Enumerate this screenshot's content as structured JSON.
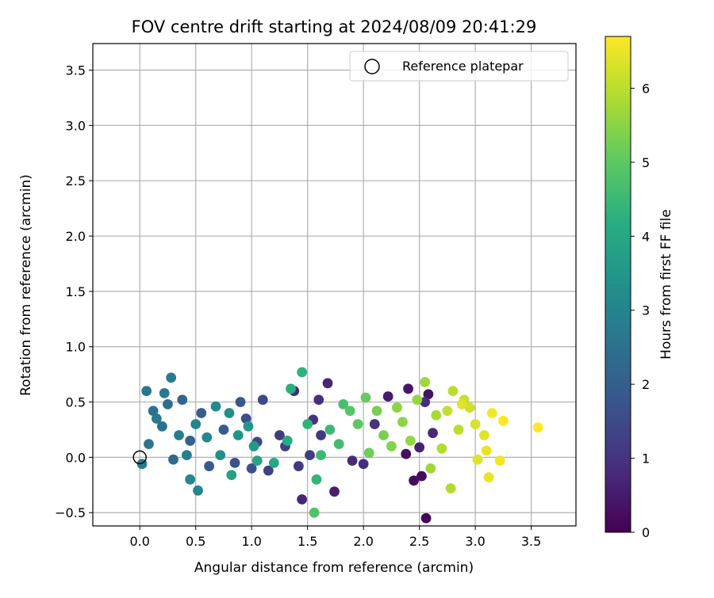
{
  "chart_data": {
    "type": "scatter",
    "title": "FOV centre drift starting at 2024/08/09 20:41:29",
    "xlabel": "Angular distance from reference (arcmin)",
    "ylabel": "Rotation from reference (arcmin)",
    "xlim": [
      -0.42,
      3.9
    ],
    "ylim": [
      -0.62,
      3.74
    ],
    "xticks": [
      0.0,
      0.5,
      1.0,
      1.5,
      2.0,
      2.5,
      3.0,
      3.5
    ],
    "xtick_labels": [
      "0.0",
      "0.5",
      "1.0",
      "1.5",
      "2.0",
      "2.5",
      "3.0",
      "3.5"
    ],
    "yticks": [
      -0.5,
      0.0,
      0.5,
      1.0,
      1.5,
      2.0,
      2.5,
      3.0,
      3.5
    ],
    "ytick_labels": [
      "−0.5",
      "0.0",
      "0.5",
      "1.0",
      "1.5",
      "2.0",
      "2.5",
      "3.0",
      "3.5"
    ],
    "grid": true,
    "legend": {
      "position": "top-right",
      "label": "Reference platepar",
      "marker": "open-circle"
    },
    "colorbar": {
      "label": "Hours from first FF file",
      "range": [
        0,
        6.7
      ],
      "ticks": [
        0,
        1,
        2,
        3,
        4,
        5,
        6
      ],
      "tick_labels": [
        "0",
        "1",
        "2",
        "3",
        "4",
        "5",
        "6"
      ],
      "colormap": "viridis"
    },
    "reference_point": {
      "x": 0.0,
      "y": 0.0
    },
    "points": [
      {
        "x": 2.56,
        "y": -0.55,
        "h": 0.1
      },
      {
        "x": 2.45,
        "y": -0.21,
        "h": 0.2
      },
      {
        "x": 2.52,
        "y": -0.17,
        "h": 0.25
      },
      {
        "x": 2.38,
        "y": 0.03,
        "h": 0.3
      },
      {
        "x": 2.58,
        "y": 0.57,
        "h": 0.35
      },
      {
        "x": 2.4,
        "y": 0.62,
        "h": 0.4
      },
      {
        "x": 2.22,
        "y": 0.55,
        "h": 0.5
      },
      {
        "x": 2.5,
        "y": 0.09,
        "h": 0.6
      },
      {
        "x": 2.62,
        "y": 0.22,
        "h": 0.8
      },
      {
        "x": 2.55,
        "y": 0.5,
        "h": 0.9
      },
      {
        "x": 2.1,
        "y": 0.3,
        "h": 1.0
      },
      {
        "x": 2.0,
        "y": -0.06,
        "h": 0.9
      },
      {
        "x": 1.9,
        "y": -0.03,
        "h": 0.8
      },
      {
        "x": 1.74,
        "y": -0.31,
        "h": 0.6
      },
      {
        "x": 1.45,
        "y": -0.38,
        "h": 0.7
      },
      {
        "x": 1.68,
        "y": 0.67,
        "h": 0.7
      },
      {
        "x": 1.38,
        "y": 0.6,
        "h": 0.8
      },
      {
        "x": 1.6,
        "y": 0.52,
        "h": 0.9
      },
      {
        "x": 1.55,
        "y": 0.34,
        "h": 1.0
      },
      {
        "x": 1.62,
        "y": 0.2,
        "h": 1.1
      },
      {
        "x": 1.42,
        "y": -0.08,
        "h": 1.1
      },
      {
        "x": 1.52,
        "y": 0.02,
        "h": 1.2
      },
      {
        "x": 1.25,
        "y": 0.2,
        "h": 1.2
      },
      {
        "x": 1.3,
        "y": 0.1,
        "h": 1.3
      },
      {
        "x": 1.15,
        "y": -0.12,
        "h": 1.3
      },
      {
        "x": 1.05,
        "y": 0.14,
        "h": 1.4
      },
      {
        "x": 1.1,
        "y": 0.52,
        "h": 1.5
      },
      {
        "x": 0.95,
        "y": 0.35,
        "h": 1.6
      },
      {
        "x": 1.0,
        "y": -0.1,
        "h": 1.6
      },
      {
        "x": 0.85,
        "y": -0.05,
        "h": 1.7
      },
      {
        "x": 0.9,
        "y": 0.5,
        "h": 1.8
      },
      {
        "x": 0.75,
        "y": 0.25,
        "h": 1.9
      },
      {
        "x": 0.62,
        "y": -0.08,
        "h": 1.9
      },
      {
        "x": 0.55,
        "y": 0.4,
        "h": 2.0
      },
      {
        "x": 0.45,
        "y": 0.15,
        "h": 2.1
      },
      {
        "x": 0.38,
        "y": 0.52,
        "h": 2.2
      },
      {
        "x": 0.3,
        "y": -0.02,
        "h": 2.3
      },
      {
        "x": 0.25,
        "y": 0.48,
        "h": 2.4
      },
      {
        "x": 0.2,
        "y": 0.28,
        "h": 2.5
      },
      {
        "x": 0.12,
        "y": 0.42,
        "h": 2.5
      },
      {
        "x": 0.08,
        "y": 0.12,
        "h": 2.6
      },
      {
        "x": 0.06,
        "y": 0.6,
        "h": 2.6
      },
      {
        "x": 0.02,
        "y": -0.06,
        "h": 2.7
      },
      {
        "x": 0.15,
        "y": 0.35,
        "h": 2.7
      },
      {
        "x": 0.22,
        "y": 0.58,
        "h": 2.7
      },
      {
        "x": 0.28,
        "y": 0.72,
        "h": 2.8
      },
      {
        "x": 0.35,
        "y": 0.2,
        "h": 2.8
      },
      {
        "x": 0.42,
        "y": 0.02,
        "h": 2.9
      },
      {
        "x": 0.5,
        "y": 0.3,
        "h": 3.0
      },
      {
        "x": 0.52,
        "y": -0.3,
        "h": 3.0
      },
      {
        "x": 0.45,
        "y": -0.2,
        "h": 3.1
      },
      {
        "x": 0.6,
        "y": 0.18,
        "h": 3.1
      },
      {
        "x": 0.68,
        "y": 0.46,
        "h": 3.2
      },
      {
        "x": 0.72,
        "y": 0.02,
        "h": 3.3
      },
      {
        "x": 0.8,
        "y": 0.4,
        "h": 3.3
      },
      {
        "x": 0.88,
        "y": 0.2,
        "h": 3.4
      },
      {
        "x": 0.97,
        "y": 0.28,
        "h": 3.5
      },
      {
        "x": 1.02,
        "y": 0.1,
        "h": 3.6
      },
      {
        "x": 0.82,
        "y": -0.16,
        "h": 3.8
      },
      {
        "x": 1.05,
        "y": -0.03,
        "h": 3.9
      },
      {
        "x": 1.2,
        "y": -0.05,
        "h": 4.0
      },
      {
        "x": 1.32,
        "y": 0.15,
        "h": 4.1
      },
      {
        "x": 1.35,
        "y": 0.62,
        "h": 4.2
      },
      {
        "x": 1.45,
        "y": 0.77,
        "h": 4.3
      },
      {
        "x": 1.5,
        "y": 0.3,
        "h": 4.3
      },
      {
        "x": 1.58,
        "y": -0.2,
        "h": 4.4
      },
      {
        "x": 1.62,
        "y": 0.02,
        "h": 4.5
      },
      {
        "x": 1.7,
        "y": 0.25,
        "h": 4.5
      },
      {
        "x": 1.78,
        "y": 0.12,
        "h": 4.6
      },
      {
        "x": 1.82,
        "y": 0.48,
        "h": 4.7
      },
      {
        "x": 1.56,
        "y": -0.5,
        "h": 4.8
      },
      {
        "x": 1.88,
        "y": 0.42,
        "h": 4.9
      },
      {
        "x": 1.95,
        "y": 0.3,
        "h": 5.0
      },
      {
        "x": 2.02,
        "y": 0.54,
        "h": 5.1
      },
      {
        "x": 2.05,
        "y": 0.04,
        "h": 5.2
      },
      {
        "x": 2.12,
        "y": 0.42,
        "h": 5.3
      },
      {
        "x": 2.18,
        "y": 0.2,
        "h": 5.3
      },
      {
        "x": 2.25,
        "y": 0.1,
        "h": 5.4
      },
      {
        "x": 2.3,
        "y": 0.45,
        "h": 5.5
      },
      {
        "x": 2.35,
        "y": 0.32,
        "h": 5.5
      },
      {
        "x": 2.42,
        "y": 0.15,
        "h": 5.6
      },
      {
        "x": 2.48,
        "y": 0.52,
        "h": 5.6
      },
      {
        "x": 2.55,
        "y": 0.68,
        "h": 5.7
      },
      {
        "x": 2.6,
        "y": -0.1,
        "h": 5.7
      },
      {
        "x": 2.65,
        "y": 0.38,
        "h": 5.8
      },
      {
        "x": 2.7,
        "y": 0.08,
        "h": 5.9
      },
      {
        "x": 2.78,
        "y": -0.28,
        "h": 5.9
      },
      {
        "x": 2.8,
        "y": 0.6,
        "h": 6.0
      },
      {
        "x": 2.85,
        "y": 0.25,
        "h": 6.0
      },
      {
        "x": 2.9,
        "y": 0.52,
        "h": 6.1
      },
      {
        "x": 2.95,
        "y": 0.45,
        "h": 6.2
      },
      {
        "x": 3.0,
        "y": 0.3,
        "h": 6.3
      },
      {
        "x": 3.02,
        "y": -0.02,
        "h": 6.4
      },
      {
        "x": 3.08,
        "y": 0.2,
        "h": 6.4
      },
      {
        "x": 3.1,
        "y": 0.06,
        "h": 6.5
      },
      {
        "x": 3.12,
        "y": -0.18,
        "h": 6.5
      },
      {
        "x": 3.15,
        "y": 0.4,
        "h": 6.6
      },
      {
        "x": 3.22,
        "y": -0.03,
        "h": 6.6
      },
      {
        "x": 3.25,
        "y": 0.33,
        "h": 6.7
      },
      {
        "x": 3.56,
        "y": 0.27,
        "h": 6.7
      },
      {
        "x": 2.88,
        "y": 0.48,
        "h": 6.4
      },
      {
        "x": 2.75,
        "y": 0.42,
        "h": 6.1
      }
    ]
  }
}
